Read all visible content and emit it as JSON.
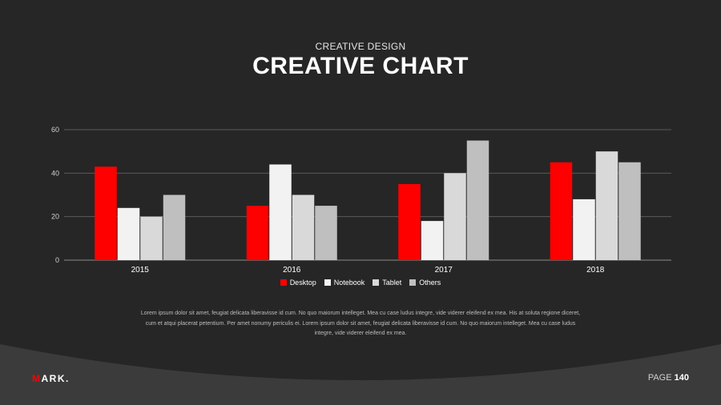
{
  "header": {
    "subtitle": "CREATIVE DESIGN",
    "title": "CREATIVE CHART"
  },
  "chart_data": {
    "type": "bar",
    "categories": [
      "2015",
      "2016",
      "2017",
      "2018"
    ],
    "series": [
      {
        "name": "Desktop",
        "values": [
          43,
          25,
          35,
          45
        ],
        "color": "#ff0000"
      },
      {
        "name": "Notebook",
        "values": [
          24,
          44,
          18,
          28
        ],
        "color": "#f2f2f2"
      },
      {
        "name": "Tablet",
        "values": [
          20,
          30,
          40,
          50
        ],
        "color": "#d9d9d9"
      },
      {
        "name": "Others",
        "values": [
          30,
          25,
          55,
          45
        ],
        "color": "#bfbfbf"
      }
    ],
    "ylim": [
      0,
      60
    ],
    "yticks": [
      0,
      20,
      40,
      60
    ],
    "grid": true,
    "legend_position": "bottom"
  },
  "body": {
    "text": "Lorem ipsum dolor sit amet, feugiat delicata liberavisse id cum. No quo maiorum intelleget. Mea cu case ludus integre, vide viderer eleifend ex mea. His at soluta regione diceret, cum et atqui placerat petentium. Per amet nonumy periculis ei. Lorem ipsum dolor sit amet, feugiat delicata liberavisse id cum. No quo maiorum intelleget. Mea cu case ludus integre, vide viderer eleifend ex mea."
  },
  "footer": {
    "logo_first": "M",
    "logo_rest": "ARK.",
    "page_label": "PAGE",
    "page_number": "140"
  },
  "colors": {
    "background": "#262626",
    "footer_band": "#3b3b3b",
    "accent": "#ff0000"
  }
}
